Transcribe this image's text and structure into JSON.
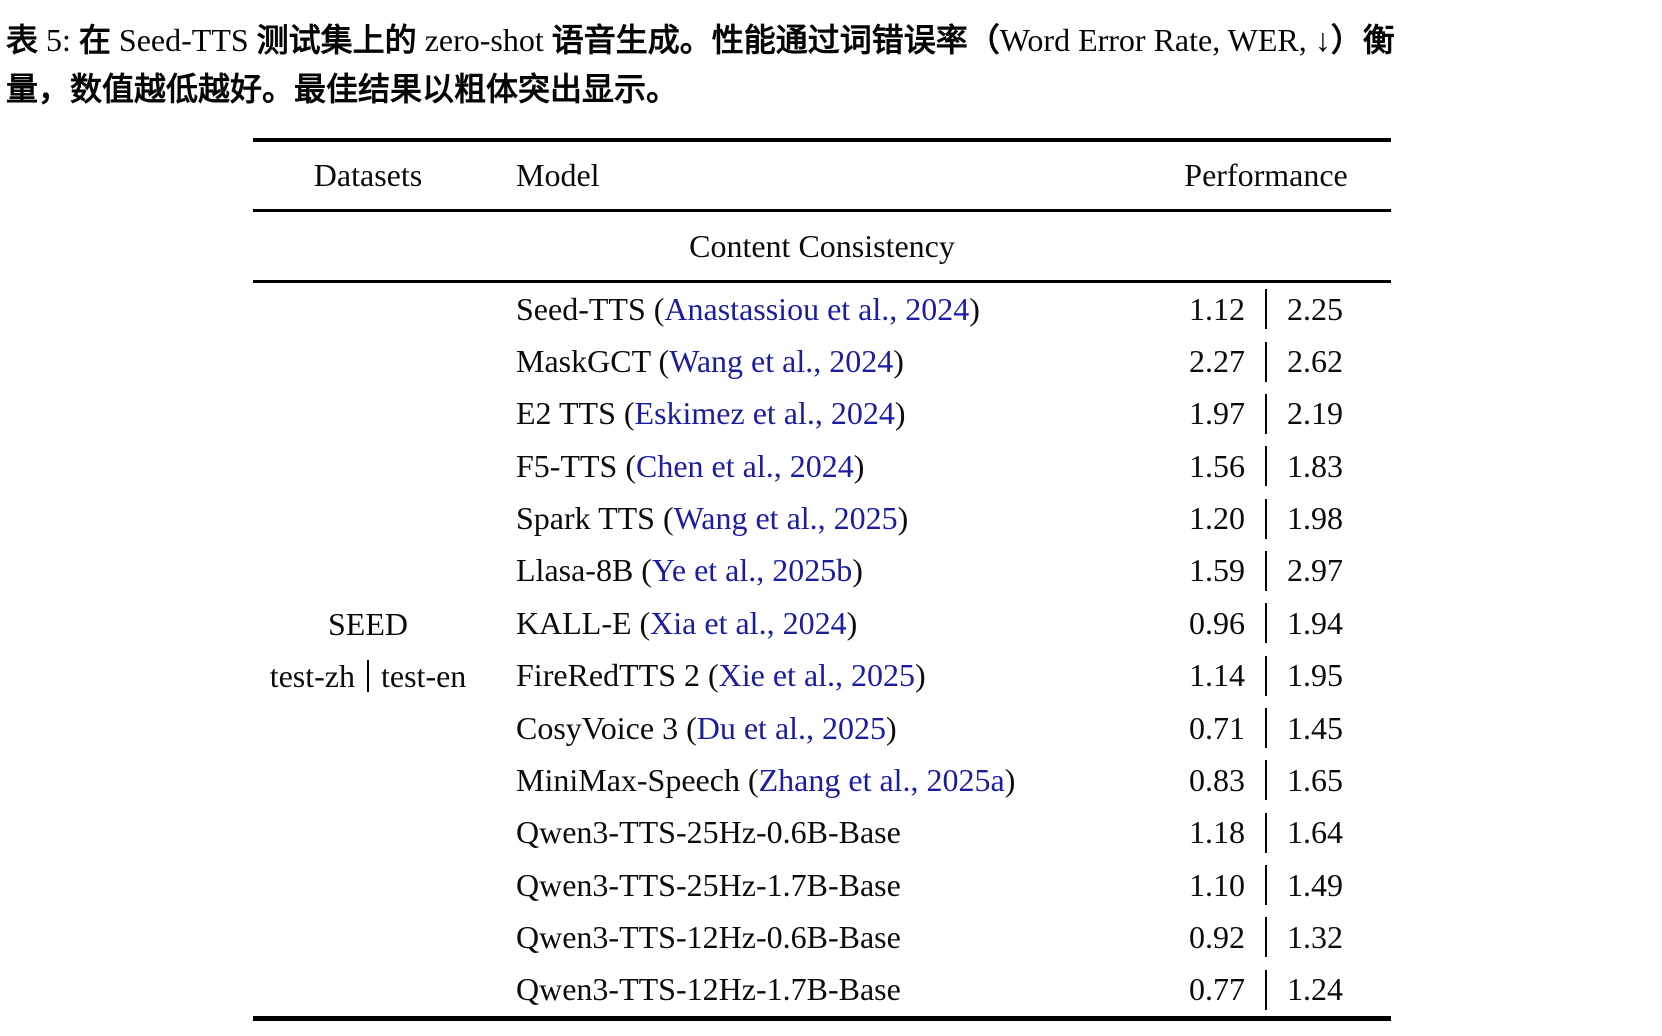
{
  "caption": {
    "segments": [
      {
        "text": "表 ",
        "cjk": true
      },
      {
        "text": "5: ",
        "cjk": false
      },
      {
        "text": "在 ",
        "cjk": true
      },
      {
        "text": "Seed-TTS ",
        "cjk": false
      },
      {
        "text": "测试集上的 ",
        "cjk": true
      },
      {
        "text": "zero-shot ",
        "cjk": false
      },
      {
        "text": "语音生成。性能通过词错误率（",
        "cjk": true
      },
      {
        "text": "Word Error Rate, WER, ↓",
        "cjk": false
      },
      {
        "text": "）衡",
        "cjk": true
      },
      {
        "break": true
      },
      {
        "text": "量，数值越低越好。最佳结果以粗体突出显示。",
        "cjk": true
      }
    ]
  },
  "table": {
    "header": {
      "datasets": "Datasets",
      "model": "Model",
      "performance": "Performance"
    },
    "section_title": "Content Consistency",
    "dataset_group": {
      "name": "SEED",
      "subset_left": "test-zh",
      "subset_right": "test-en"
    },
    "rows": [
      {
        "model": "Seed-TTS",
        "cite": "Anastassiou et al., 2024",
        "wer_zh": "1.12",
        "wer_en": "2.25"
      },
      {
        "model": "MaskGCT",
        "cite": "Wang et al., 2024",
        "wer_zh": "2.27",
        "wer_en": "2.62"
      },
      {
        "model": "E2 TTS",
        "cite": "Eskimez et al., 2024",
        "wer_zh": "1.97",
        "wer_en": "2.19"
      },
      {
        "model": "F5-TTS",
        "cite": "Chen et al., 2024",
        "wer_zh": "1.56",
        "wer_en": "1.83"
      },
      {
        "model": "Spark TTS",
        "cite": "Wang et al., 2025",
        "wer_zh": "1.20",
        "wer_en": "1.98"
      },
      {
        "model": "Llasa-8B",
        "cite": "Ye et al., 2025b",
        "wer_zh": "1.59",
        "wer_en": "2.97"
      },
      {
        "model": "KALL-E",
        "cite": "Xia et al., 2024",
        "wer_zh": "0.96",
        "wer_en": "1.94"
      },
      {
        "model": "FireRedTTS 2",
        "cite": "Xie et al., 2025",
        "wer_zh": "1.14",
        "wer_en": "1.95"
      },
      {
        "model": "CosyVoice 3",
        "cite": "Du et al., 2025",
        "wer_zh": "0.71",
        "wer_en": "1.45"
      },
      {
        "model": "MiniMax-Speech",
        "cite": "Zhang et al., 2025a",
        "wer_zh": "0.83",
        "wer_en": "1.65"
      },
      {
        "model": "Qwen3-TTS-25Hz-0.6B-Base",
        "cite": null,
        "wer_zh": "1.18",
        "wer_en": "1.64"
      },
      {
        "model": "Qwen3-TTS-25Hz-1.7B-Base",
        "cite": null,
        "wer_zh": "1.10",
        "wer_en": "1.49"
      },
      {
        "model": "Qwen3-TTS-12Hz-0.6B-Base",
        "cite": null,
        "wer_zh": "0.92",
        "wer_en": "1.32"
      },
      {
        "model": "Qwen3-TTS-12Hz-1.7B-Base",
        "cite": null,
        "wer_zh": "0.77",
        "wer_en": "1.24"
      }
    ],
    "colors": {
      "citation_link": "#1b1da1",
      "text": "#0b0b0b",
      "rule": "#000000"
    }
  }
}
